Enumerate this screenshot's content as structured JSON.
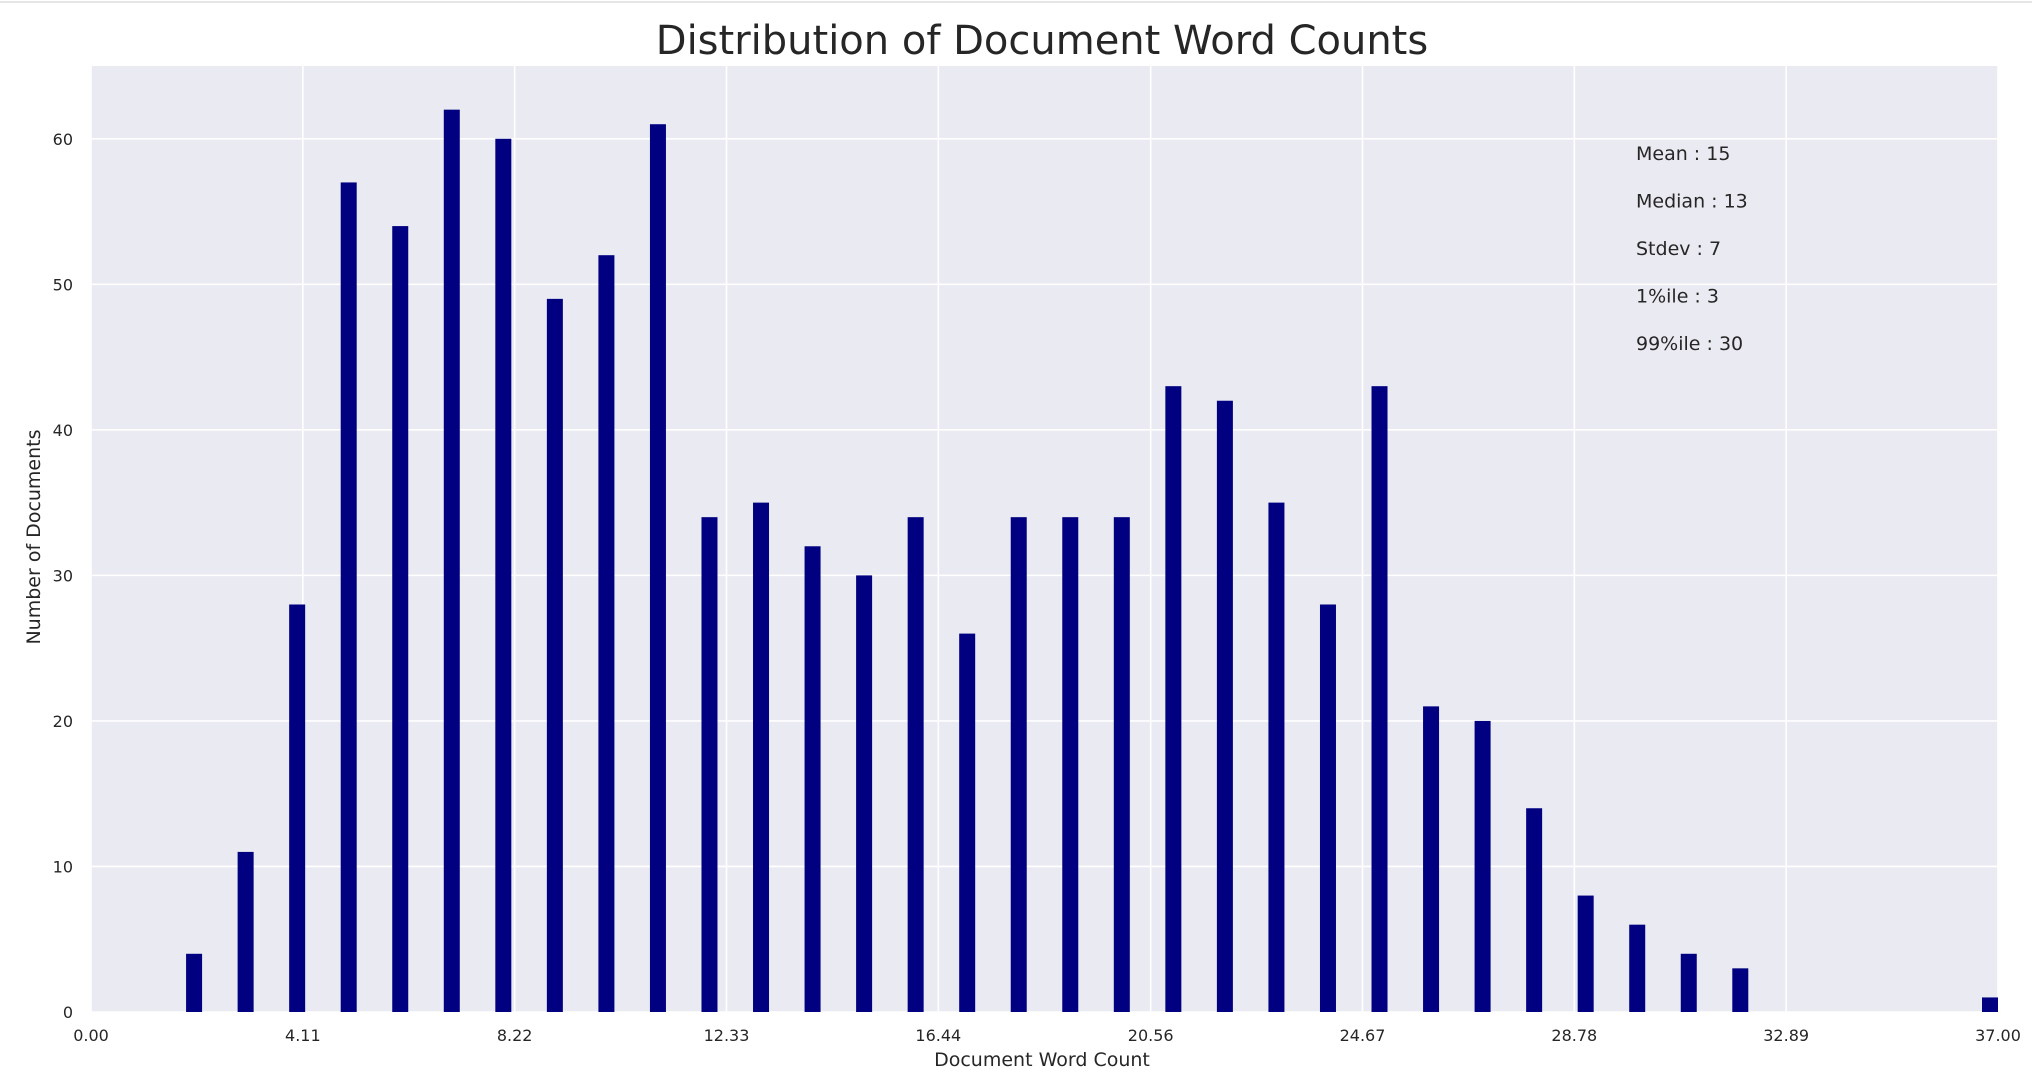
{
  "chart_data": {
    "type": "bar",
    "title": "Distribution of Document Word Counts",
    "xlabel": "Document Word Count",
    "ylabel": "Number of Documents",
    "xlim": [
      0,
      37
    ],
    "ylim": [
      0,
      65
    ],
    "x_ticks": [
      "0.00",
      "4.11",
      "8.22",
      "12.33",
      "16.44",
      "20.56",
      "24.67",
      "28.78",
      "32.89",
      "37.00"
    ],
    "y_ticks": [
      "0",
      "10",
      "20",
      "30",
      "40",
      "50",
      "60"
    ],
    "grid": true,
    "bar_color": "#000080",
    "background_color": "#eaeaf2",
    "x": [
      2,
      3,
      4,
      5,
      6,
      7,
      8,
      9,
      10,
      11,
      12,
      13,
      14,
      15,
      16,
      17,
      18,
      19,
      20,
      21,
      22,
      23,
      24,
      25,
      26,
      27,
      28,
      29,
      30,
      31,
      32,
      37
    ],
    "values": [
      4,
      11,
      28,
      57,
      54,
      62,
      60,
      49,
      52,
      61,
      34,
      35,
      32,
      30,
      34,
      26,
      34,
      34,
      34,
      43,
      42,
      35,
      28,
      43,
      21,
      20,
      14,
      8,
      6,
      4,
      3,
      1
    ],
    "stats": [
      {
        "label": "Mean",
        "value": "15",
        "text": "Mean   : 15"
      },
      {
        "label": "Median",
        "value": "13",
        "text": "Median : 13"
      },
      {
        "label": "Stdev",
        "value": "7",
        "text": "Stdev   : 7"
      },
      {
        "label": "1%ile",
        "value": "3",
        "text": "1%ile    : 3"
      },
      {
        "label": "99%ile",
        "value": "30",
        "text": "99%ile  : 30"
      }
    ]
  }
}
